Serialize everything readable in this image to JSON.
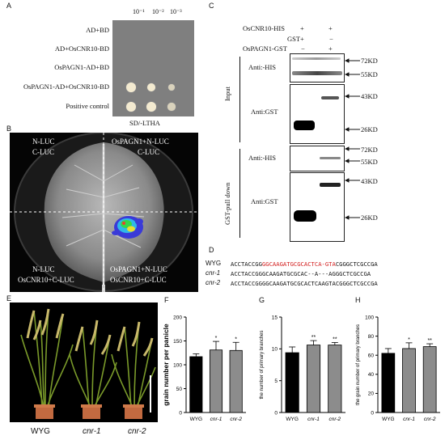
{
  "figure": {
    "panel_labels": {
      "a": "A",
      "b": "B",
      "c": "C",
      "d": "D",
      "e": "E",
      "f": "F",
      "g": "G",
      "h": "H"
    }
  },
  "panel_a": {
    "dilutions": [
      "10⁻¹",
      "10⁻²",
      "10⁻³"
    ],
    "rows": [
      "AD+BD",
      "AD+OsCNR10-BD",
      "OsPAGN1-AD+BD",
      "OsPAGN1-AD+OsCNR10-BD",
      "Positive control"
    ],
    "medium": "SD/-LTHA",
    "growth": [
      [
        0,
        0,
        0
      ],
      [
        0,
        0,
        0
      ],
      [
        0,
        0,
        0
      ],
      [
        1,
        0.85,
        0.6
      ],
      [
        1,
        1,
        0.75
      ]
    ]
  },
  "panel_b": {
    "top_left": [
      "N-LUC",
      "C-LUC"
    ],
    "top_right": [
      "OsPAGN1+N-LUC",
      "C-LUC"
    ],
    "bottom_left": [
      "N-LUC",
      "OsCNR10+C-LUC"
    ],
    "bottom_right": [
      "OsPAGN1+N-LUC",
      "OsCNR10+C-LUC"
    ]
  },
  "panel_c": {
    "rows": [
      {
        "label": "OsCNR10-HIS",
        "lane1": "+",
        "lane2": "+"
      },
      {
        "label": "GST",
        "lane1": "+",
        "lane2": "−"
      },
      {
        "label": "OsPAGN1-GST",
        "lane1": "−",
        "lane2": "+"
      }
    ],
    "groups": [
      "Input",
      "GST-pull down"
    ],
    "blots": [
      "Anti:-HIS",
      "Anti:GST",
      "Anti:-HIS",
      "Anti:GST"
    ],
    "markers": {
      "b1": [
        "72KD",
        "55KD"
      ],
      "b2": [
        "43KD",
        "26KD"
      ],
      "b3": [
        "72KD",
        "55KD"
      ],
      "b4": [
        "43KD",
        "26KD"
      ]
    }
  },
  "panel_d": {
    "lines": [
      {
        "name": "WYG",
        "pre": "ACCTACCGG",
        "red": "GGCAAGATGCGCACTCA-GTA",
        "post": "CGGGCTCGCCGA"
      },
      {
        "name": "cnr-1",
        "pre": "ACCTACCGGGCAAGATGCGCAC--A---",
        "red": "",
        "post": "AGGGCTCGCCGA"
      },
      {
        "name": "cnr-2",
        "pre": "ACCTACCGGGGCAAGATGCGCACTCAAGTACGGGCTCGCCGA",
        "red": "",
        "post": ""
      }
    ]
  },
  "panel_e": {
    "labels": [
      "WYG",
      "cnr-1",
      "cnr-2"
    ]
  },
  "chart_data": [
    {
      "type": "bar",
      "panel": "F",
      "categories": [
        "WYG",
        "cnr-1",
        "cnr-2"
      ],
      "values": [
        117,
        131,
        130
      ],
      "errors": [
        6,
        18,
        17
      ],
      "significance": [
        "",
        "*",
        "*"
      ],
      "ylabel": "grain number per panicle",
      "ylim": [
        0,
        200
      ],
      "yticks": [
        0,
        50,
        100,
        150,
        200
      ],
      "colors": [
        "#000000",
        "#8c8c8c",
        "#8c8c8c"
      ]
    },
    {
      "type": "bar",
      "panel": "G",
      "categories": [
        "WYG",
        "cnr-1",
        "cnr-2"
      ],
      "values": [
        9.4,
        10.6,
        10.6
      ],
      "errors": [
        0.9,
        0.7,
        0.4
      ],
      "significance": [
        "",
        "**",
        "**"
      ],
      "ylabel": "the number of primary branches",
      "ylim": [
        0,
        15
      ],
      "yticks": [
        0,
        5,
        10,
        15
      ],
      "colors": [
        "#000000",
        "#8c8c8c",
        "#8c8c8c"
      ]
    },
    {
      "type": "bar",
      "panel": "H",
      "categories": [
        "WYG",
        "cnr-1",
        "cnr-2"
      ],
      "values": [
        62,
        67,
        69
      ],
      "errors": [
        5,
        6,
        3
      ],
      "significance": [
        "",
        "*",
        "**"
      ],
      "ylabel": "the grain number of primary branches",
      "ylim": [
        0,
        100
      ],
      "yticks": [
        0,
        20,
        40,
        60,
        80,
        100
      ],
      "colors": [
        "#000000",
        "#8c8c8c",
        "#8c8c8c"
      ]
    }
  ]
}
